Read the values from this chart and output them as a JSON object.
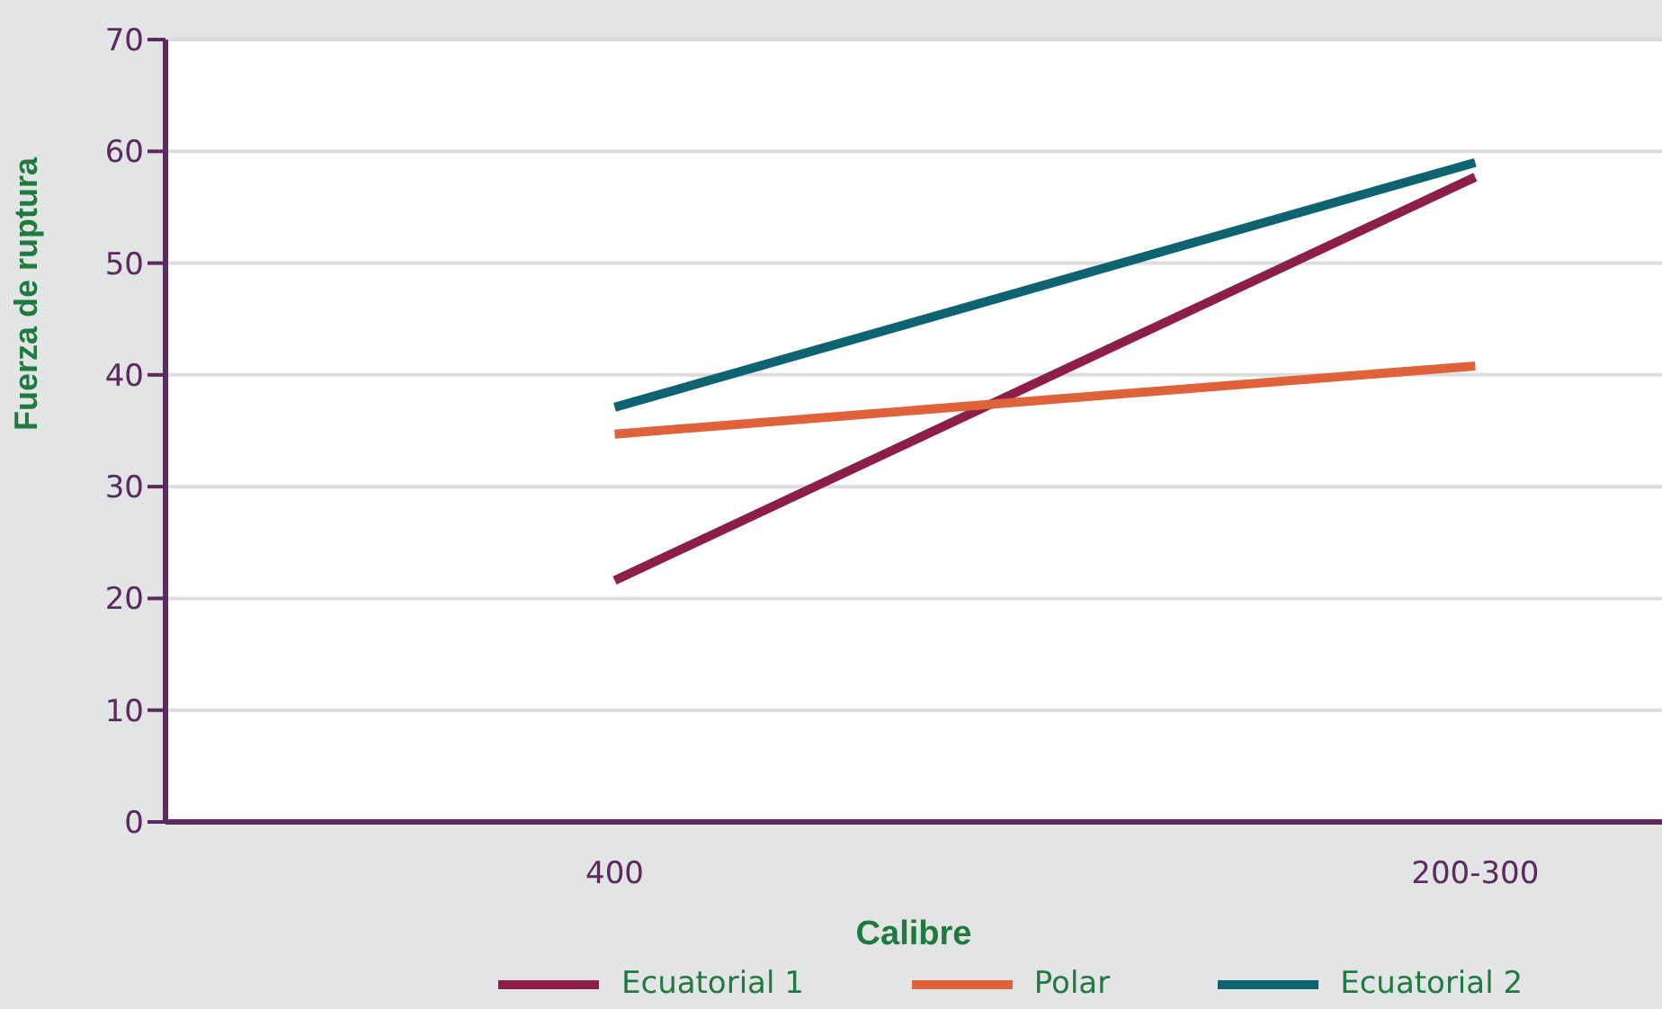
{
  "chart_data": {
    "type": "line",
    "xlabel": "Calibre",
    "ylabel": "Fuerza de  ruptura",
    "categories": [
      "400",
      "200-300"
    ],
    "series": [
      {
        "name": "Ecuatorial 1",
        "color": "#8b1e4a",
        "values": [
          21.6,
          57.7
        ]
      },
      {
        "name": "Polar",
        "color": "#e0623a",
        "values": [
          34.7,
          40.8
        ]
      },
      {
        "name": "Ecuatorial 2",
        "color": "#0d6470",
        "values": [
          37.1,
          59.0
        ]
      }
    ],
    "ylim": [
      0,
      70
    ],
    "yticks": [
      0,
      10,
      20,
      30,
      40,
      50,
      60,
      70
    ],
    "grid": "y",
    "legend": "bottom",
    "marker": "none",
    "line_style": "solid"
  }
}
